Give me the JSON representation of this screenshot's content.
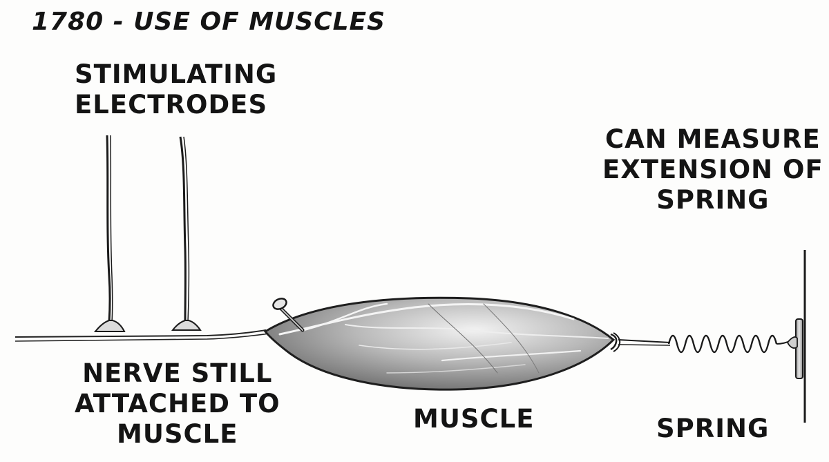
{
  "title": "1780 - USE OF MUSCLES",
  "labels": {
    "electrodes": [
      "STIMULATING",
      "ELECTRODES"
    ],
    "measure": [
      "CAN MEASURE",
      "EXTENSION OF",
      "SPRING"
    ],
    "nerve": [
      "NERVE STILL",
      "ATTACHED TO",
      "MUSCLE"
    ],
    "muscle": "MUSCLE",
    "spring": "SPRING"
  },
  "colors": {
    "ink": "#141414",
    "muscle_fill": "#8c8c8c",
    "paper": "#fdfdfc"
  }
}
